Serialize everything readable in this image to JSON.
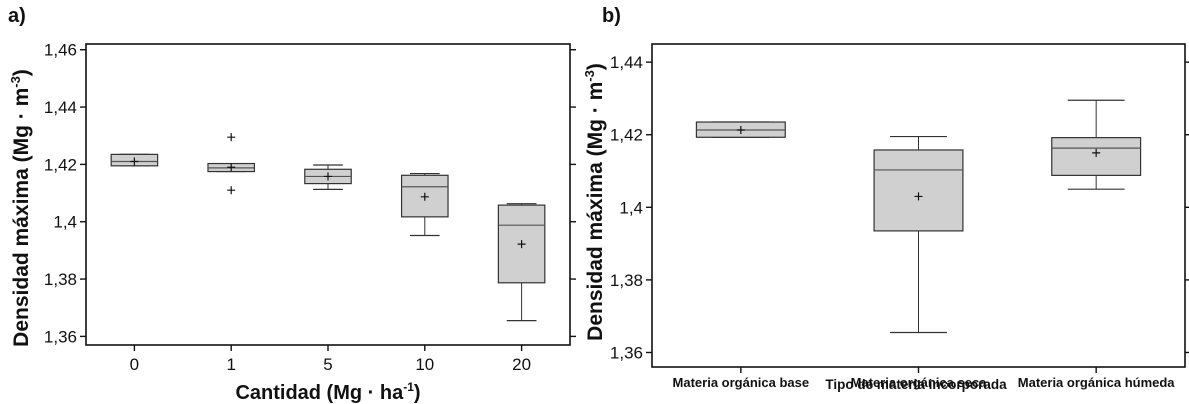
{
  "chart_data": [
    {
      "type": "box",
      "panel_label": "a)",
      "xlabel": "Cantidad (Mg · ha",
      "xlabel_sup": "-1",
      "xlabel_close": ")",
      "ylabel": "Densidad máxima (Mg · m",
      "ylabel_sup": "-3",
      "ylabel_close": ")",
      "ylim": [
        1.357,
        1.462
      ],
      "y_ticks": [
        1.36,
        1.38,
        1.4,
        1.42,
        1.44,
        1.46
      ],
      "y_tick_labels": [
        "1,36",
        "1,38",
        "1,4",
        "1,42",
        "1,44",
        "1,46"
      ],
      "categories": [
        "0",
        "1",
        "5",
        "10",
        "20"
      ],
      "boxes": [
        {
          "category": "0",
          "whisker_low": 1.4195,
          "q1": 1.4195,
          "median": 1.421,
          "q3": 1.4235,
          "whisker_high": 1.4235,
          "mean": 1.421,
          "outliers": []
        },
        {
          "category": "1",
          "whisker_low": 1.4175,
          "q1": 1.4175,
          "median": 1.4188,
          "q3": 1.4203,
          "whisker_high": 1.4203,
          "mean": 1.419,
          "outliers": [
            1.4295,
            1.411
          ]
        },
        {
          "category": "5",
          "whisker_low": 1.4113,
          "q1": 1.4133,
          "median": 1.4158,
          "q3": 1.4183,
          "whisker_high": 1.4198,
          "mean": 1.4158,
          "outliers": []
        },
        {
          "category": "10",
          "whisker_low": 1.3952,
          "q1": 1.4017,
          "median": 1.4122,
          "q3": 1.4162,
          "whisker_high": 1.4168,
          "mean": 1.4087,
          "outliers": []
        },
        {
          "category": "20",
          "whisker_low": 1.3655,
          "q1": 1.3787,
          "median": 1.3988,
          "q3": 1.4058,
          "whisker_high": 1.4063,
          "mean": 1.3922,
          "outliers": []
        }
      ]
    },
    {
      "type": "box",
      "panel_label": "b)",
      "xlabel": "Tipo de materia incorporada",
      "ylabel": "Densidad máxima (Mg · m",
      "ylabel_sup": "-3",
      "ylabel_close": ")",
      "ylim": [
        1.356,
        1.445
      ],
      "y_ticks": [
        1.36,
        1.38,
        1.4,
        1.42,
        1.44
      ],
      "y_tick_labels": [
        "1,36",
        "1,38",
        "1,4",
        "1,42",
        "1,44"
      ],
      "categories": [
        "Materia orgánica base",
        "Materia orgánica seca",
        "Materia orgánica húmeda"
      ],
      "boxes": [
        {
          "category": "Materia orgánica base",
          "whisker_low": 1.4193,
          "q1": 1.4193,
          "median": 1.4213,
          "q3": 1.4235,
          "whisker_high": 1.4235,
          "mean": 1.4213,
          "outliers": []
        },
        {
          "category": "Materia orgánica seca",
          "whisker_low": 1.3655,
          "q1": 1.3935,
          "median": 1.4103,
          "q3": 1.4158,
          "whisker_high": 1.4195,
          "mean": 1.403,
          "outliers": []
        },
        {
          "category": "Materia orgánica húmeda",
          "whisker_low": 1.405,
          "q1": 1.4088,
          "median": 1.4163,
          "q3": 1.4192,
          "whisker_high": 1.4295,
          "mean": 1.415,
          "outliers": []
        }
      ]
    }
  ],
  "colors": {
    "box_fill": "#d0d0d0",
    "box_stroke": "#333333",
    "axis": "#111111",
    "median_line": "#555555"
  }
}
